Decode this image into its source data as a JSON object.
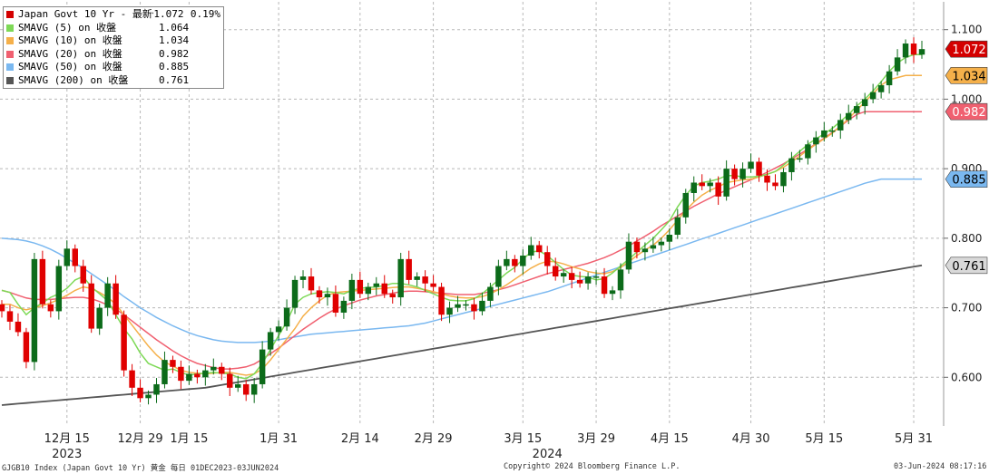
{
  "footer": {
    "left": "GJGB10 Index (Japan Govt 10 Yr) 黄金  每日 01DEC2023-03JUN2024",
    "center": "Copyright© 2024 Bloomberg Finance L.P.",
    "right": "03-Jun-2024 08:17:16"
  },
  "legend": [
    {
      "name": "Japan Govt 10 Yr - 最新價",
      "value": "1.072",
      "extra": "0.19%",
      "color": "#d40000"
    },
    {
      "name": "SMAVG (5)  on 收盤",
      "value": "1.064",
      "extra": "",
      "color": "#7ed957"
    },
    {
      "name": "SMAVG (10)  on 收盤",
      "value": "1.034",
      "extra": "",
      "color": "#f5b04a"
    },
    {
      "name": "SMAVG (20)  on 收盤",
      "value": "0.982",
      "extra": "",
      "color": "#f06070"
    },
    {
      "name": "SMAVG (50)  on 收盤",
      "value": "0.885",
      "extra": "",
      "color": "#7ab8f0"
    },
    {
      "name": "SMAVG (200)  on 收盤",
      "value": "0.761",
      "extra": "",
      "color": "#555555"
    }
  ],
  "chart_data": {
    "type": "candlestick",
    "title": "",
    "ylim": [
      0.53,
      1.14
    ],
    "yticks": [
      0.6,
      0.7,
      0.8,
      0.9,
      1.0,
      1.1
    ],
    "ytick_labels": [
      "0.600",
      "0.700",
      "0.800",
      "0.900",
      "1.000",
      "1.100"
    ],
    "xtick_labels": [
      "12月 15",
      "12月 29",
      "1月 15",
      "1月 31",
      "2月 14",
      "2月 29",
      "3月 15",
      "3月 29",
      "4月 15",
      "4月 30",
      "5月 15",
      "5月 31"
    ],
    "xtick_index": [
      8,
      17,
      23,
      34,
      44,
      53,
      64,
      73,
      82,
      92,
      101,
      112
    ],
    "year_labels": [
      {
        "text": "2023",
        "index": 8
      },
      {
        "text": "2024",
        "index": 67
      }
    ],
    "last_labels": [
      {
        "text": "1.072",
        "value": 1.072,
        "bg": "#d40000",
        "fg": "#ffffff"
      },
      {
        "text": "1.034",
        "value": 1.034,
        "bg": "#f5b04a",
        "fg": "#000000"
      },
      {
        "text": "0.982",
        "value": 0.982,
        "bg": "#f06070",
        "fg": "#ffffff"
      },
      {
        "text": "0.885",
        "value": 0.885,
        "bg": "#7ab8f0",
        "fg": "#000000"
      },
      {
        "text": "0.761",
        "value": 0.761,
        "bg": "#d9d9d9",
        "fg": "#000000"
      }
    ],
    "up_color": "#0c6b1a",
    "down_color": "#e00000",
    "closes": [
      0.695,
      0.68,
      0.665,
      0.622,
      0.77,
      0.705,
      0.695,
      0.76,
      0.785,
      0.76,
      0.735,
      0.67,
      0.7,
      0.735,
      0.69,
      0.61,
      0.585,
      0.57,
      0.575,
      0.59,
      0.625,
      0.615,
      0.595,
      0.605,
      0.6,
      0.61,
      0.615,
      0.605,
      0.585,
      0.59,
      0.575,
      0.59,
      0.64,
      0.665,
      0.673,
      0.7,
      0.74,
      0.745,
      0.725,
      0.715,
      0.72,
      0.693,
      0.71,
      0.74,
      0.72,
      0.73,
      0.735,
      0.72,
      0.715,
      0.77,
      0.74,
      0.745,
      0.735,
      0.73,
      0.69,
      0.7,
      0.705,
      0.705,
      0.695,
      0.71,
      0.73,
      0.76,
      0.77,
      0.76,
      0.775,
      0.79,
      0.78,
      0.76,
      0.745,
      0.75,
      0.74,
      0.735,
      0.745,
      0.745,
      0.72,
      0.725,
      0.755,
      0.795,
      0.78,
      0.785,
      0.79,
      0.795,
      0.805,
      0.83,
      0.865,
      0.88,
      0.875,
      0.88,
      0.86,
      0.9,
      0.885,
      0.9,
      0.91,
      0.89,
      0.88,
      0.875,
      0.895,
      0.915,
      0.915,
      0.935,
      0.945,
      0.955,
      0.955,
      0.97,
      0.98,
      0.99,
      1.0,
      1.01,
      1.02,
      1.04,
      1.06,
      1.08,
      1.064,
      1.072
    ],
    "ma5": [
      0.725,
      0.722,
      0.705,
      0.69,
      0.7,
      0.707,
      0.715,
      0.72,
      0.728,
      0.74,
      0.745,
      0.73,
      0.72,
      0.71,
      0.69,
      0.67,
      0.655,
      0.635,
      0.62,
      0.615,
      0.61,
      0.612,
      0.607,
      0.603,
      0.605,
      0.606,
      0.607,
      0.606,
      0.605,
      0.6,
      0.598,
      0.605,
      0.62,
      0.64,
      0.66,
      0.68,
      0.705,
      0.715,
      0.72,
      0.722,
      0.723,
      0.722,
      0.72,
      0.725,
      0.728,
      0.729,
      0.73,
      0.732,
      0.735,
      0.735,
      0.733,
      0.73,
      0.725,
      0.72,
      0.715,
      0.711,
      0.71,
      0.71,
      0.713,
      0.72,
      0.73,
      0.74,
      0.75,
      0.758,
      0.77,
      0.78,
      0.782,
      0.775,
      0.765,
      0.755,
      0.747,
      0.745,
      0.744,
      0.74,
      0.742,
      0.75,
      0.76,
      0.77,
      0.78,
      0.79,
      0.8,
      0.812,
      0.825,
      0.845,
      0.862,
      0.875,
      0.88,
      0.882,
      0.885,
      0.89,
      0.89,
      0.888,
      0.888,
      0.889,
      0.892,
      0.896,
      0.905,
      0.915,
      0.925,
      0.935,
      0.943,
      0.95,
      0.958,
      0.968,
      0.978,
      0.99,
      1.0,
      1.012,
      1.025,
      1.04,
      1.052,
      1.06,
      1.064,
      1.064
    ],
    "ma10": [
      0.705,
      0.705,
      0.7,
      0.697,
      0.7,
      0.703,
      0.707,
      0.712,
      0.718,
      0.725,
      0.73,
      0.728,
      0.722,
      0.715,
      0.705,
      0.69,
      0.675,
      0.66,
      0.645,
      0.632,
      0.622,
      0.616,
      0.61,
      0.607,
      0.606,
      0.605,
      0.606,
      0.607,
      0.607,
      0.605,
      0.603,
      0.605,
      0.612,
      0.625,
      0.64,
      0.655,
      0.67,
      0.688,
      0.7,
      0.71,
      0.718,
      0.722,
      0.723,
      0.724,
      0.725,
      0.726,
      0.727,
      0.728,
      0.729,
      0.73,
      0.73,
      0.728,
      0.726,
      0.723,
      0.72,
      0.717,
      0.715,
      0.714,
      0.714,
      0.716,
      0.72,
      0.726,
      0.733,
      0.741,
      0.749,
      0.757,
      0.763,
      0.767,
      0.766,
      0.763,
      0.759,
      0.756,
      0.752,
      0.75,
      0.749,
      0.752,
      0.758,
      0.766,
      0.775,
      0.783,
      0.79,
      0.8,
      0.812,
      0.826,
      0.84,
      0.852,
      0.862,
      0.869,
      0.874,
      0.88,
      0.882,
      0.884,
      0.885,
      0.888,
      0.892,
      0.896,
      0.902,
      0.91,
      0.918,
      0.927,
      0.935,
      0.943,
      0.951,
      0.961,
      0.972,
      0.984,
      0.996,
      1.008,
      1.02,
      1.028,
      1.031,
      1.034,
      1.034,
      1.034
    ],
    "ma20": [
      0.725,
      0.722,
      0.718,
      0.714,
      0.712,
      0.712,
      0.712,
      0.713,
      0.714,
      0.715,
      0.715,
      0.713,
      0.709,
      0.704,
      0.698,
      0.69,
      0.681,
      0.672,
      0.663,
      0.654,
      0.646,
      0.638,
      0.631,
      0.625,
      0.62,
      0.617,
      0.614,
      0.612,
      0.612,
      0.613,
      0.615,
      0.619,
      0.626,
      0.634,
      0.642,
      0.651,
      0.66,
      0.669,
      0.677,
      0.685,
      0.692,
      0.698,
      0.703,
      0.707,
      0.711,
      0.714,
      0.717,
      0.719,
      0.721,
      0.723,
      0.724,
      0.724,
      0.723,
      0.722,
      0.721,
      0.72,
      0.719,
      0.719,
      0.719,
      0.721,
      0.723,
      0.726,
      0.729,
      0.733,
      0.737,
      0.741,
      0.745,
      0.749,
      0.752,
      0.755,
      0.758,
      0.761,
      0.764,
      0.768,
      0.772,
      0.777,
      0.783,
      0.789,
      0.796,
      0.803,
      0.81,
      0.818,
      0.825,
      0.832,
      0.839,
      0.846,
      0.852,
      0.858,
      0.864,
      0.869,
      0.874,
      0.879,
      0.884,
      0.889,
      0.895,
      0.901,
      0.907,
      0.914,
      0.921,
      0.928,
      0.936,
      0.944,
      0.952,
      0.961,
      0.97,
      0.978,
      0.982,
      0.982,
      0.982,
      0.982,
      0.982,
      0.982,
      0.982,
      0.982
    ],
    "ma50": [
      0.8,
      0.799,
      0.798,
      0.796,
      0.793,
      0.789,
      0.784,
      0.778,
      0.771,
      0.764,
      0.757,
      0.749,
      0.741,
      0.733,
      0.725,
      0.716,
      0.708,
      0.7,
      0.693,
      0.686,
      0.68,
      0.674,
      0.669,
      0.664,
      0.66,
      0.657,
      0.654,
      0.652,
      0.651,
      0.65,
      0.65,
      0.65,
      0.651,
      0.652,
      0.654,
      0.656,
      0.658,
      0.66,
      0.662,
      0.663,
      0.664,
      0.665,
      0.666,
      0.667,
      0.668,
      0.669,
      0.67,
      0.671,
      0.672,
      0.673,
      0.674,
      0.676,
      0.678,
      0.681,
      0.684,
      0.687,
      0.69,
      0.693,
      0.696,
      0.699,
      0.702,
      0.705,
      0.708,
      0.711,
      0.714,
      0.717,
      0.72,
      0.723,
      0.727,
      0.731,
      0.735,
      0.739,
      0.743,
      0.747,
      0.751,
      0.755,
      0.759,
      0.763,
      0.767,
      0.771,
      0.775,
      0.779,
      0.783,
      0.787,
      0.791,
      0.795,
      0.799,
      0.803,
      0.807,
      0.811,
      0.815,
      0.819,
      0.823,
      0.827,
      0.831,
      0.835,
      0.839,
      0.843,
      0.847,
      0.851,
      0.855,
      0.859,
      0.863,
      0.867,
      0.871,
      0.875,
      0.879,
      0.882,
      0.885,
      0.885,
      0.885,
      0.885,
      0.885,
      0.885
    ],
    "ma200": [
      0.56,
      0.561,
      0.562,
      0.563,
      0.564,
      0.565,
      0.566,
      0.567,
      0.568,
      0.569,
      0.57,
      0.571,
      0.572,
      0.573,
      0.574,
      0.575,
      0.576,
      0.577,
      0.578,
      0.579,
      0.58,
      0.581,
      0.582,
      0.583,
      0.584,
      0.585,
      0.587,
      0.589,
      0.591,
      0.593,
      0.595,
      0.597,
      0.599,
      0.601,
      0.603,
      0.605,
      0.607,
      0.609,
      0.611,
      0.613,
      0.615,
      0.617,
      0.619,
      0.621,
      0.623,
      0.625,
      0.627,
      0.629,
      0.631,
      0.633,
      0.635,
      0.637,
      0.639,
      0.641,
      0.643,
      0.645,
      0.647,
      0.649,
      0.651,
      0.653,
      0.655,
      0.657,
      0.659,
      0.661,
      0.663,
      0.665,
      0.667,
      0.669,
      0.671,
      0.673,
      0.675,
      0.677,
      0.679,
      0.681,
      0.683,
      0.685,
      0.687,
      0.689,
      0.691,
      0.693,
      0.695,
      0.697,
      0.699,
      0.701,
      0.703,
      0.705,
      0.707,
      0.709,
      0.711,
      0.713,
      0.715,
      0.717,
      0.719,
      0.721,
      0.723,
      0.725,
      0.727,
      0.729,
      0.731,
      0.733,
      0.735,
      0.737,
      0.739,
      0.741,
      0.743,
      0.745,
      0.747,
      0.749,
      0.751,
      0.753,
      0.755,
      0.757,
      0.759,
      0.761
    ]
  }
}
